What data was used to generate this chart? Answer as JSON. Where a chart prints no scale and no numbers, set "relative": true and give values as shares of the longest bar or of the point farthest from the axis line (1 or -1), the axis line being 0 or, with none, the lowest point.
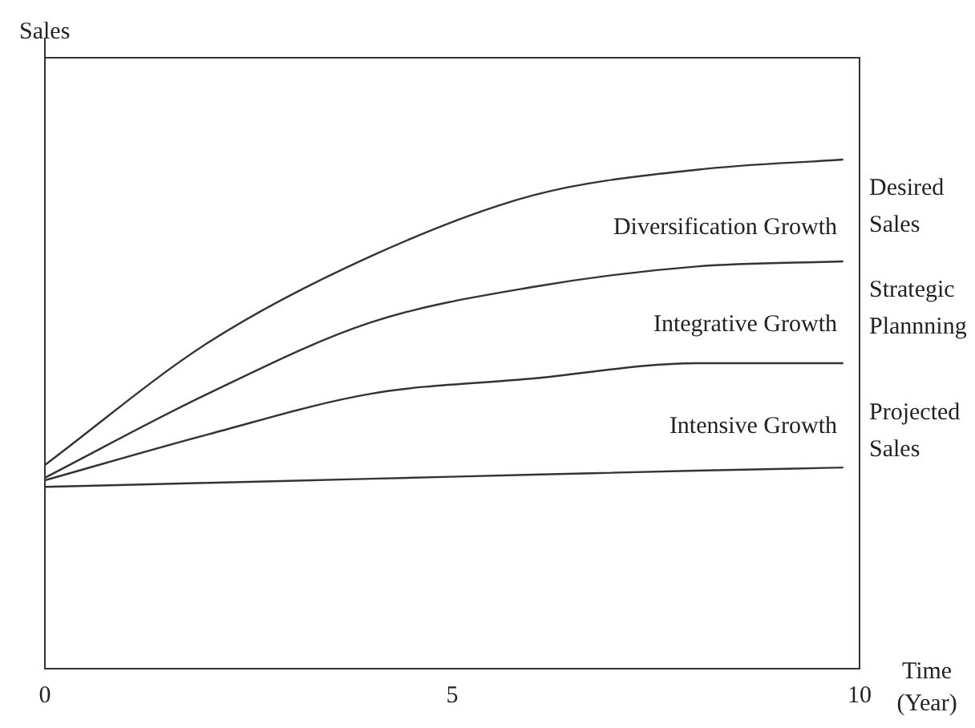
{
  "chart_data": {
    "type": "line",
    "relative": true,
    "ylabel": "Sales",
    "xlabel": "Time (Year)",
    "xlim": [
      0,
      10
    ],
    "xticks": [
      0,
      5,
      10
    ],
    "grid": false,
    "legend": false,
    "marker": "none",
    "line_style": "solid",
    "x": [
      0,
      2,
      4,
      6,
      8,
      9.8
    ],
    "series": [
      {
        "name": "Desired Sales",
        "color": "#333333",
        "values": [
          0.4,
          0.64,
          0.81,
          0.93,
          0.98,
          1
        ]
      },
      {
        "name": "Strategic Plannning",
        "color": "#333333",
        "values": [
          0.375,
          0.54,
          0.68,
          0.75,
          0.79,
          0.8
        ]
      },
      {
        "color": "#333333",
        "values": [
          0.37,
          0.46,
          0.54,
          0.57,
          0.6,
          0.6
        ]
      },
      {
        "name": "Projected Sales",
        "color": "#333333",
        "values": [
          0.357,
          0.365,
          0.373,
          0.381,
          0.389,
          0.395
        ]
      }
    ],
    "annotations": [
      "Diversification Growth",
      "Integrative Growth",
      "Intensive Growth"
    ]
  }
}
